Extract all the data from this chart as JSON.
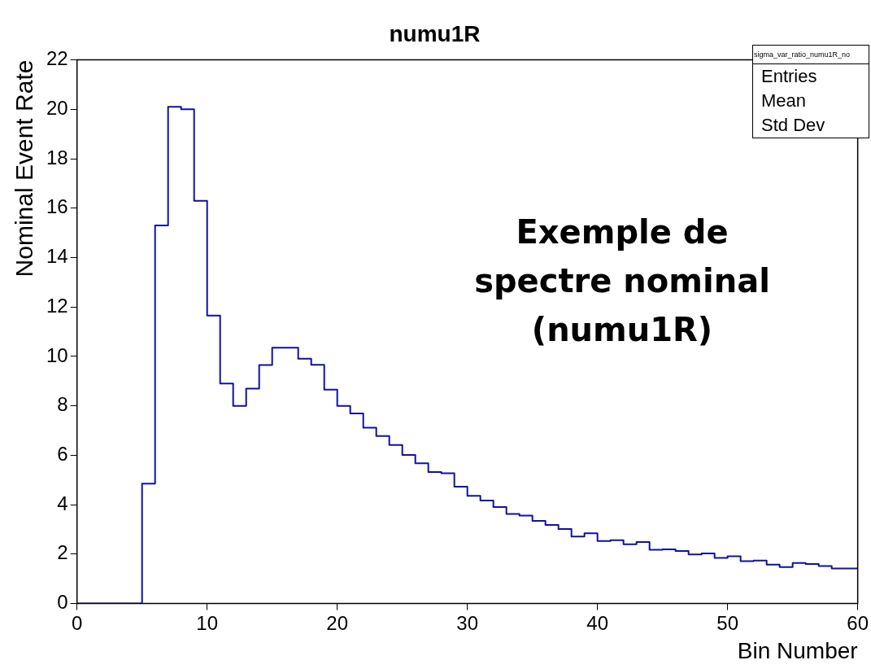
{
  "chart_data": {
    "type": "histogram",
    "title": "numu1R",
    "xlabel": "Bin Number",
    "ylabel": "Nominal Event Rate",
    "bins": [
      0,
      1,
      2,
      3,
      4,
      5,
      6,
      7,
      8,
      9,
      10,
      11,
      12,
      13,
      14,
      15,
      16,
      17,
      18,
      19,
      20,
      21,
      22,
      23,
      24,
      25,
      26,
      27,
      28,
      29,
      30,
      31,
      32,
      33,
      34,
      35,
      36,
      37,
      38,
      39,
      40,
      41,
      42,
      43,
      44,
      45,
      46,
      47,
      48,
      49,
      50,
      51,
      52,
      53,
      54,
      55,
      56,
      57,
      58,
      59,
      60
    ],
    "values": [
      0,
      0,
      0,
      0,
      0,
      4.85,
      15.3,
      20.1,
      20.0,
      16.3,
      11.65,
      8.9,
      8.0,
      8.7,
      9.65,
      10.35,
      10.35,
      9.91,
      9.66,
      8.66,
      8.0,
      7.69,
      7.12,
      6.78,
      6.42,
      6.01,
      5.68,
      5.32,
      5.27,
      4.73,
      4.36,
      4.17,
      3.91,
      3.63,
      3.56,
      3.35,
      3.18,
      3.02,
      2.71,
      2.84,
      2.53,
      2.56,
      2.4,
      2.49,
      2.18,
      2.19,
      2.13,
      1.99,
      2.03,
      1.85,
      1.91,
      1.72,
      1.74,
      1.58,
      1.48,
      1.64,
      1.6,
      1.52,
      1.42,
      1.42
    ],
    "color": "#1010a0",
    "xlim": [
      0,
      60
    ],
    "xticks": [
      0,
      10,
      20,
      30,
      40,
      50,
      60
    ],
    "ylim": [
      0,
      22
    ],
    "yticks": [
      0,
      2,
      4,
      6,
      8,
      10,
      12,
      14,
      16,
      18,
      20,
      22
    ],
    "grid": false,
    "legend": false,
    "annotations": [
      "Exemple de spectre nominal (numu1R)",
      "sigma_var_ratio_numu1R_no",
      "Entries",
      "Mean",
      "Std Dev"
    ]
  }
}
